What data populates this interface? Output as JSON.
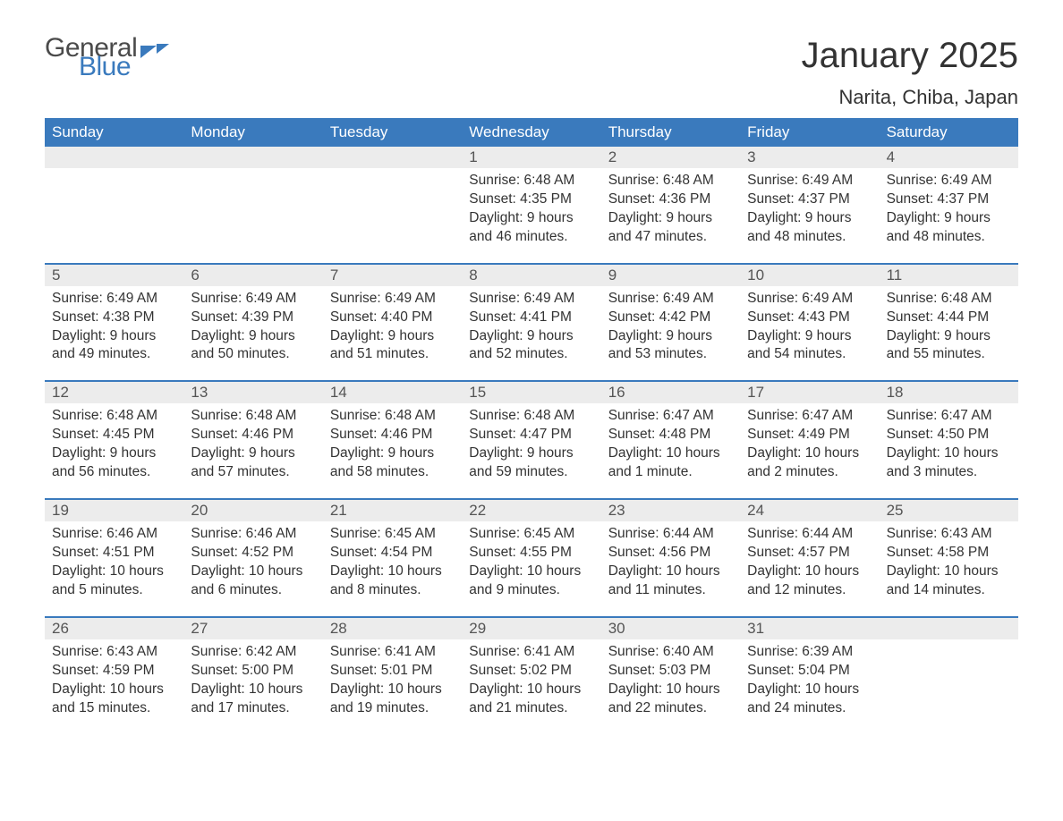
{
  "brand": {
    "part1": "General",
    "part2": "Blue"
  },
  "title": "January 2025",
  "location": "Narita, Chiba, Japan",
  "colors": {
    "header_bg": "#3a7abd",
    "header_text": "#ffffff",
    "daynum_bg": "#ececec",
    "border": "#3a7abd",
    "body_text": "#333333",
    "background": "#ffffff"
  },
  "weekdays": [
    "Sunday",
    "Monday",
    "Tuesday",
    "Wednesday",
    "Thursday",
    "Friday",
    "Saturday"
  ],
  "weeks": [
    [
      {
        "day": "",
        "sunrise": "",
        "sunset": "",
        "daylight": ""
      },
      {
        "day": "",
        "sunrise": "",
        "sunset": "",
        "daylight": ""
      },
      {
        "day": "",
        "sunrise": "",
        "sunset": "",
        "daylight": ""
      },
      {
        "day": "1",
        "sunrise": "Sunrise: 6:48 AM",
        "sunset": "Sunset: 4:35 PM",
        "daylight": "Daylight: 9 hours and 46 minutes."
      },
      {
        "day": "2",
        "sunrise": "Sunrise: 6:48 AM",
        "sunset": "Sunset: 4:36 PM",
        "daylight": "Daylight: 9 hours and 47 minutes."
      },
      {
        "day": "3",
        "sunrise": "Sunrise: 6:49 AM",
        "sunset": "Sunset: 4:37 PM",
        "daylight": "Daylight: 9 hours and 48 minutes."
      },
      {
        "day": "4",
        "sunrise": "Sunrise: 6:49 AM",
        "sunset": "Sunset: 4:37 PM",
        "daylight": "Daylight: 9 hours and 48 minutes."
      }
    ],
    [
      {
        "day": "5",
        "sunrise": "Sunrise: 6:49 AM",
        "sunset": "Sunset: 4:38 PM",
        "daylight": "Daylight: 9 hours and 49 minutes."
      },
      {
        "day": "6",
        "sunrise": "Sunrise: 6:49 AM",
        "sunset": "Sunset: 4:39 PM",
        "daylight": "Daylight: 9 hours and 50 minutes."
      },
      {
        "day": "7",
        "sunrise": "Sunrise: 6:49 AM",
        "sunset": "Sunset: 4:40 PM",
        "daylight": "Daylight: 9 hours and 51 minutes."
      },
      {
        "day": "8",
        "sunrise": "Sunrise: 6:49 AM",
        "sunset": "Sunset: 4:41 PM",
        "daylight": "Daylight: 9 hours and 52 minutes."
      },
      {
        "day": "9",
        "sunrise": "Sunrise: 6:49 AM",
        "sunset": "Sunset: 4:42 PM",
        "daylight": "Daylight: 9 hours and 53 minutes."
      },
      {
        "day": "10",
        "sunrise": "Sunrise: 6:49 AM",
        "sunset": "Sunset: 4:43 PM",
        "daylight": "Daylight: 9 hours and 54 minutes."
      },
      {
        "day": "11",
        "sunrise": "Sunrise: 6:48 AM",
        "sunset": "Sunset: 4:44 PM",
        "daylight": "Daylight: 9 hours and 55 minutes."
      }
    ],
    [
      {
        "day": "12",
        "sunrise": "Sunrise: 6:48 AM",
        "sunset": "Sunset: 4:45 PM",
        "daylight": "Daylight: 9 hours and 56 minutes."
      },
      {
        "day": "13",
        "sunrise": "Sunrise: 6:48 AM",
        "sunset": "Sunset: 4:46 PM",
        "daylight": "Daylight: 9 hours and 57 minutes."
      },
      {
        "day": "14",
        "sunrise": "Sunrise: 6:48 AM",
        "sunset": "Sunset: 4:46 PM",
        "daylight": "Daylight: 9 hours and 58 minutes."
      },
      {
        "day": "15",
        "sunrise": "Sunrise: 6:48 AM",
        "sunset": "Sunset: 4:47 PM",
        "daylight": "Daylight: 9 hours and 59 minutes."
      },
      {
        "day": "16",
        "sunrise": "Sunrise: 6:47 AM",
        "sunset": "Sunset: 4:48 PM",
        "daylight": "Daylight: 10 hours and 1 minute."
      },
      {
        "day": "17",
        "sunrise": "Sunrise: 6:47 AM",
        "sunset": "Sunset: 4:49 PM",
        "daylight": "Daylight: 10 hours and 2 minutes."
      },
      {
        "day": "18",
        "sunrise": "Sunrise: 6:47 AM",
        "sunset": "Sunset: 4:50 PM",
        "daylight": "Daylight: 10 hours and 3 minutes."
      }
    ],
    [
      {
        "day": "19",
        "sunrise": "Sunrise: 6:46 AM",
        "sunset": "Sunset: 4:51 PM",
        "daylight": "Daylight: 10 hours and 5 minutes."
      },
      {
        "day": "20",
        "sunrise": "Sunrise: 6:46 AM",
        "sunset": "Sunset: 4:52 PM",
        "daylight": "Daylight: 10 hours and 6 minutes."
      },
      {
        "day": "21",
        "sunrise": "Sunrise: 6:45 AM",
        "sunset": "Sunset: 4:54 PM",
        "daylight": "Daylight: 10 hours and 8 minutes."
      },
      {
        "day": "22",
        "sunrise": "Sunrise: 6:45 AM",
        "sunset": "Sunset: 4:55 PM",
        "daylight": "Daylight: 10 hours and 9 minutes."
      },
      {
        "day": "23",
        "sunrise": "Sunrise: 6:44 AM",
        "sunset": "Sunset: 4:56 PM",
        "daylight": "Daylight: 10 hours and 11 minutes."
      },
      {
        "day": "24",
        "sunrise": "Sunrise: 6:44 AM",
        "sunset": "Sunset: 4:57 PM",
        "daylight": "Daylight: 10 hours and 12 minutes."
      },
      {
        "day": "25",
        "sunrise": "Sunrise: 6:43 AM",
        "sunset": "Sunset: 4:58 PM",
        "daylight": "Daylight: 10 hours and 14 minutes."
      }
    ],
    [
      {
        "day": "26",
        "sunrise": "Sunrise: 6:43 AM",
        "sunset": "Sunset: 4:59 PM",
        "daylight": "Daylight: 10 hours and 15 minutes."
      },
      {
        "day": "27",
        "sunrise": "Sunrise: 6:42 AM",
        "sunset": "Sunset: 5:00 PM",
        "daylight": "Daylight: 10 hours and 17 minutes."
      },
      {
        "day": "28",
        "sunrise": "Sunrise: 6:41 AM",
        "sunset": "Sunset: 5:01 PM",
        "daylight": "Daylight: 10 hours and 19 minutes."
      },
      {
        "day": "29",
        "sunrise": "Sunrise: 6:41 AM",
        "sunset": "Sunset: 5:02 PM",
        "daylight": "Daylight: 10 hours and 21 minutes."
      },
      {
        "day": "30",
        "sunrise": "Sunrise: 6:40 AM",
        "sunset": "Sunset: 5:03 PM",
        "daylight": "Daylight: 10 hours and 22 minutes."
      },
      {
        "day": "31",
        "sunrise": "Sunrise: 6:39 AM",
        "sunset": "Sunset: 5:04 PM",
        "daylight": "Daylight: 10 hours and 24 minutes."
      },
      {
        "day": "",
        "sunrise": "",
        "sunset": "",
        "daylight": ""
      }
    ]
  ]
}
